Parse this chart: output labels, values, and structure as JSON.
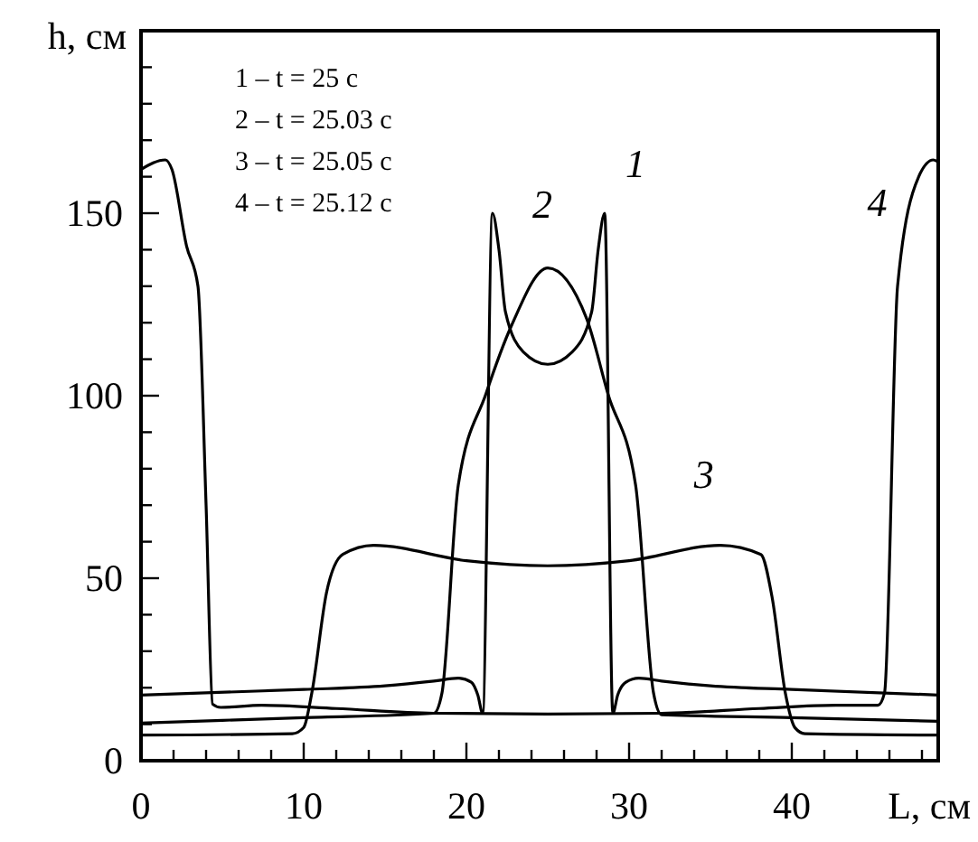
{
  "chart_data": {
    "type": "line",
    "xlabel": "L, см",
    "ylabel": "h, см",
    "xlim": [
      0,
      49
    ],
    "ylim": [
      0,
      200
    ],
    "xticks": [
      0,
      {
        "value": 2,
        "label": null
      },
      {
        "value": 4,
        "label": null
      },
      {
        "value": 6,
        "label": null
      },
      {
        "value": 8,
        "label": null
      },
      10,
      {
        "value": 12,
        "label": null
      },
      {
        "value": 14,
        "label": null
      },
      {
        "value": 16,
        "label": null
      },
      {
        "value": 18,
        "label": null
      },
      20,
      {
        "value": 22,
        "label": null
      },
      {
        "value": 24,
        "label": null
      },
      {
        "value": 26,
        "label": null
      },
      {
        "value": 28,
        "label": null
      },
      30,
      {
        "value": 32,
        "label": null
      },
      {
        "value": 34,
        "label": null
      },
      {
        "value": 36,
        "label": null
      },
      {
        "value": 38,
        "label": null
      },
      40,
      {
        "value": 42,
        "label": null
      },
      {
        "value": 44,
        "label": null
      },
      {
        "value": 46,
        "label": null
      },
      {
        "value": 48,
        "label": null
      }
    ],
    "yticks": [
      0,
      {
        "value": 10,
        "label": null
      },
      {
        "value": 20,
        "label": null
      },
      {
        "value": 30,
        "label": null
      },
      {
        "value": 40,
        "label": null
      },
      50,
      {
        "value": 60,
        "label": null
      },
      {
        "value": 70,
        "label": null
      },
      {
        "value": 80,
        "label": null
      },
      {
        "value": 90,
        "label": null
      },
      100,
      {
        "value": 110,
        "label": null
      },
      {
        "value": 120,
        "label": null
      },
      {
        "value": 130,
        "label": null
      },
      {
        "value": 140,
        "label": null
      },
      150,
      {
        "value": 160,
        "label": null
      },
      {
        "value": 170,
        "label": null
      },
      {
        "value": 180,
        "label": null
      },
      {
        "value": 190,
        "label": null
      }
    ],
    "grid": false,
    "series": [
      {
        "name": "1",
        "color": "#000000",
        "x": [
          0,
          10,
          15,
          18,
          19.5,
          20.3,
          20.7,
          21.0,
          21.6,
          22,
          22.4,
          23.5,
          25,
          26.5,
          27.7,
          28.1,
          28.5,
          29.0,
          29.3,
          29.8,
          30.6,
          32,
          35,
          40,
          49
        ],
        "values": [
          18,
          19.5,
          20.5,
          21.8,
          22.6,
          21.5,
          18,
          13,
          150,
          140,
          123,
          112,
          108.6,
          112,
          123,
          140,
          150,
          13,
          18,
          21.5,
          22.6,
          21.8,
          20.5,
          19.5,
          18
        ]
      },
      {
        "name": "2",
        "color": "#000000",
        "x": [
          0,
          10,
          18,
          18.5,
          19.5,
          21.2,
          22.8,
          25,
          27.4,
          28.7,
          30.4,
          31.5,
          32,
          40,
          49
        ],
        "values": [
          10.3,
          11.8,
          13,
          18.6,
          75.5,
          100.5,
          119.5,
          135,
          121,
          100.5,
          75.5,
          18.6,
          12.6,
          11.8,
          10.8
        ]
      },
      {
        "name": "3",
        "color": "#000000",
        "x": [
          0,
          9.3,
          10,
          10.5,
          11.4,
          12.4,
          14.3,
          20,
          25,
          30,
          35.6,
          38.1,
          38.8,
          39.6,
          40.2,
          40.8,
          49
        ],
        "values": [
          7,
          7.4,
          9.1,
          18.6,
          46,
          56.5,
          59,
          54.8,
          53.4,
          54.8,
          59,
          56.5,
          44.5,
          18.6,
          9,
          7.4,
          7
        ]
      },
      {
        "name": "4",
        "color": "#000000",
        "x": [
          0,
          1.5,
          1.9,
          2.8,
          3.5,
          4.0,
          4.4,
          4.9,
          7.4,
          12,
          18,
          25,
          32,
          38,
          42.7,
          45.3,
          45.7,
          46.5,
          47.8,
          48.7,
          49
        ],
        "values": [
          162,
          164.6,
          162,
          141,
          130,
          70,
          15.5,
          14.6,
          15.2,
          14.3,
          13,
          12.8,
          13,
          14.3,
          15.2,
          15.2,
          18.6,
          130,
          160,
          164.6,
          164
        ]
      }
    ],
    "annotations": [
      "1 –  t = 25 c",
      "2 –  t = 25.03 c",
      "3 –  t = 25.05 c",
      "4 –  t = 25.12 c"
    ]
  }
}
